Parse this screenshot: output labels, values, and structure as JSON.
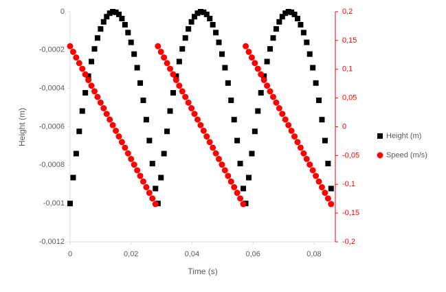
{
  "chart_data": {
    "type": "scatter",
    "x_label": "Time (s)",
    "y_label": "Height (m)",
    "x": [
      0,
      0.001,
      0.002,
      0.003,
      0.004,
      0.005,
      0.006,
      0.007,
      0.008,
      0.009,
      0.01,
      0.011,
      0.012,
      0.013,
      0.014,
      0.015,
      0.016,
      0.017,
      0.018,
      0.019,
      0.02,
      0.021,
      0.022,
      0.023,
      0.024,
      0.025,
      0.026,
      0.027,
      0.028,
      0.0288,
      0.0298,
      0.0308,
      0.0318,
      0.0328,
      0.0338,
      0.0348,
      0.0358,
      0.0368,
      0.0378,
      0.0388,
      0.0398,
      0.0408,
      0.0418,
      0.0428,
      0.0438,
      0.0448,
      0.0458,
      0.0468,
      0.0478,
      0.0488,
      0.0498,
      0.0508,
      0.0518,
      0.0528,
      0.0538,
      0.0548,
      0.0558,
      0.0568,
      0.0576,
      0.0586,
      0.0596,
      0.0606,
      0.0616,
      0.0626,
      0.0636,
      0.0646,
      0.0656,
      0.0666,
      0.0676,
      0.0686,
      0.0696,
      0.0706,
      0.0716,
      0.0726,
      0.0736,
      0.0746,
      0.0756,
      0.0766,
      0.0776,
      0.0786,
      0.0796,
      0.0806,
      0.0816,
      0.0826,
      0.0836,
      0.0846,
      0.0856
    ],
    "series": [
      {
        "name": "Height (m)",
        "color": "#000000",
        "marker": "square",
        "axis": "y",
        "values": [
          -0.001,
          -0.000865,
          -0.00074,
          -0.000624,
          -0.000518,
          -0.000423,
          -0.000336,
          -0.00026,
          -0.000194,
          -0.000137,
          -9e-05,
          -5.3e-05,
          -2.6e-05,
          -8e-06,
          0,
          -3e-06,
          -1.4e-05,
          -3.6e-05,
          -6.8e-05,
          -0.000109,
          -0.00016,
          -0.000221,
          -0.000292,
          -0.000372,
          -0.000462,
          -0.000563,
          -0.000672,
          -0.000792,
          -0.000922,
          -0.001,
          -0.000865,
          -0.00074,
          -0.000624,
          -0.000518,
          -0.000423,
          -0.000336,
          -0.00026,
          -0.000194,
          -0.000137,
          -9e-05,
          -5.3e-05,
          -2.6e-05,
          -8e-06,
          0,
          -3e-06,
          -1.4e-05,
          -3.6e-05,
          -6.8e-05,
          -0.000109,
          -0.00016,
          -0.000221,
          -0.000292,
          -0.000372,
          -0.000462,
          -0.000563,
          -0.000672,
          -0.000792,
          -0.000922,
          -0.001,
          -0.000865,
          -0.00074,
          -0.000624,
          -0.000518,
          -0.000423,
          -0.000336,
          -0.00026,
          -0.000194,
          -0.000137,
          -9e-05,
          -5.3e-05,
          -2.6e-05,
          -8e-06,
          0,
          -3e-06,
          -1.4e-05,
          -3.6e-05,
          -6.8e-05,
          -0.000109,
          -0.00016,
          -0.000221,
          -0.000292,
          -0.000372,
          -0.000462,
          -0.000563,
          -0.000672,
          -0.000792,
          -0.000922
        ]
      },
      {
        "name": "Speed (m/s)",
        "color": "#ff0000",
        "marker": "circle",
        "axis": "y2",
        "values": [
          0.14,
          0.1302,
          0.1204,
          0.1106,
          0.1008,
          0.091,
          0.0812,
          0.0714,
          0.0616,
          0.0518,
          0.042,
          0.0322,
          0.0224,
          0.0126,
          0.0028,
          -0.007,
          -0.0168,
          -0.0266,
          -0.0364,
          -0.0462,
          -0.056,
          -0.0658,
          -0.0756,
          -0.0854,
          -0.0952,
          -0.105,
          -0.1148,
          -0.1246,
          -0.1344,
          0.14,
          0.1302,
          0.1204,
          0.1106,
          0.1008,
          0.091,
          0.0812,
          0.0714,
          0.0616,
          0.0518,
          0.042,
          0.0322,
          0.0224,
          0.0126,
          0.0028,
          -0.007,
          -0.0168,
          -0.0266,
          -0.0364,
          -0.0462,
          -0.056,
          -0.0658,
          -0.0756,
          -0.0854,
          -0.0952,
          -0.105,
          -0.1148,
          -0.1246,
          -0.1344,
          0.14,
          0.1302,
          0.1204,
          0.1106,
          0.1008,
          0.091,
          0.0812,
          0.0714,
          0.0616,
          0.0518,
          0.042,
          0.0322,
          0.0224,
          0.0126,
          0.0028,
          -0.007,
          -0.0168,
          -0.0266,
          -0.0364,
          -0.0462,
          -0.056,
          -0.0658,
          -0.0756,
          -0.0854,
          -0.0952,
          -0.105,
          -0.1148,
          -0.1246,
          -0.1344
        ]
      }
    ],
    "xlim": [
      0,
      0.087
    ],
    "xticks": [
      0,
      {
        "value": 0.02,
        "label": "0,02"
      },
      {
        "value": 0.04,
        "label": "0,04"
      },
      {
        "value": 0.06,
        "label": "0,06"
      },
      {
        "value": 0.08,
        "label": "0,08"
      }
    ],
    "ylim": [
      -0.0012,
      0
    ],
    "yticks": [
      0,
      {
        "value": -0.0002,
        "label": "-0,0002"
      },
      {
        "value": -0.0004,
        "label": "-0,0004"
      },
      {
        "value": -0.0006,
        "label": "-0,0006"
      },
      {
        "value": -0.0008,
        "label": "-0,0008"
      },
      {
        "value": -0.001,
        "label": "-0,001"
      },
      {
        "value": -0.0012,
        "label": "-0,0012"
      }
    ],
    "y2lim": [
      -0.2,
      0.2
    ],
    "y2ticks": [
      {
        "value": 0.2,
        "label": "0,2"
      },
      {
        "value": 0.15,
        "label": "0,15"
      },
      {
        "value": 0.1,
        "label": "0,1"
      },
      {
        "value": 0.05,
        "label": "0,05"
      },
      0,
      {
        "value": -0.05,
        "label": "-0,05"
      },
      {
        "value": -0.1,
        "label": "-0,1"
      },
      {
        "value": -0.15,
        "label": "-0,15"
      },
      {
        "value": -0.2,
        "label": "-0,2"
      }
    ],
    "y2_color": "#ff0000",
    "grid": false,
    "legend": "right"
  }
}
